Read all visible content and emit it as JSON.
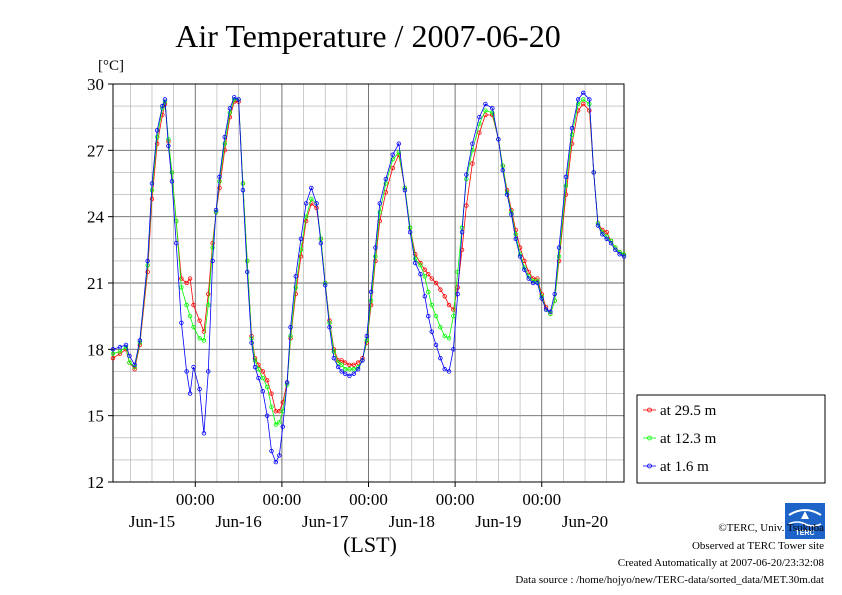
{
  "chart_data": {
    "type": "line",
    "title": "Air Temperature / 2007-06-20",
    "ylabel": "[°C]",
    "xlabel": "(LST)",
    "ylim": [
      12,
      30
    ],
    "yticks": [
      12,
      15,
      18,
      21,
      24,
      27,
      30
    ],
    "y_tick_labels": [
      "12",
      "15",
      "18",
      "21",
      "24",
      "27",
      "30"
    ],
    "xlim": [
      -0.95,
      4.95
    ],
    "xticks_days": [
      0,
      1,
      2,
      3,
      4
    ],
    "xtick_time_label": "00:00",
    "xtick_date_labels": [
      "Jun-15",
      "Jun-16",
      "Jun-17",
      "Jun-18",
      "Jun-19",
      "Jun-20"
    ],
    "xtick_date_positions": [
      -0.5,
      0.5,
      1.5,
      2.5,
      3.5,
      4.5
    ],
    "grid": true,
    "legend_position": "right",
    "series": [
      {
        "name": "at 29.5 m",
        "color": "#ff0000",
        "x": [
          -0.95,
          -0.87,
          -0.8,
          -0.76,
          -0.7,
          -0.64,
          -0.55,
          -0.5,
          -0.44,
          -0.38,
          -0.35,
          -0.31,
          -0.27,
          -0.22,
          -0.16,
          -0.1,
          -0.06,
          -0.02,
          0.05,
          0.1,
          0.15,
          0.2,
          0.24,
          0.28,
          0.34,
          0.4,
          0.45,
          0.5,
          0.55,
          0.6,
          0.65,
          0.69,
          0.73,
          0.78,
          0.83,
          0.88,
          0.93,
          0.97,
          1.01,
          1.06,
          1.1,
          1.16,
          1.22,
          1.28,
          1.34,
          1.4,
          1.45,
          1.5,
          1.55,
          1.6,
          1.65,
          1.69,
          1.73,
          1.78,
          1.83,
          1.88,
          1.93,
          1.98,
          2.03,
          2.08,
          2.13,
          2.2,
          2.28,
          2.35,
          2.42,
          2.48,
          2.54,
          2.6,
          2.65,
          2.69,
          2.73,
          2.78,
          2.83,
          2.88,
          2.93,
          2.98,
          3.03,
          3.08,
          3.13,
          3.2,
          3.28,
          3.35,
          3.43,
          3.5,
          3.55,
          3.6,
          3.65,
          3.7,
          3.75,
          3.8,
          3.85,
          3.9,
          3.95,
          4.0,
          4.05,
          4.1,
          4.15,
          4.2,
          4.28,
          4.35,
          4.42,
          4.48,
          4.55,
          4.6,
          4.65,
          4.7,
          4.75,
          4.8,
          4.85,
          4.9,
          4.95
        ],
        "y": [
          17.6,
          17.8,
          18.0,
          17.4,
          17.1,
          18.2,
          21.5,
          24.8,
          27.3,
          28.6,
          29.1,
          27.4,
          26.0,
          23.8,
          21.2,
          21.0,
          21.2,
          20.0,
          19.3,
          18.8,
          20.5,
          22.8,
          24.2,
          25.3,
          27.0,
          28.5,
          29.2,
          29.2,
          25.5,
          22.0,
          18.6,
          17.6,
          17.3,
          17.0,
          16.6,
          16.0,
          15.2,
          15.2,
          15.6,
          16.5,
          18.5,
          20.5,
          22.2,
          23.8,
          24.6,
          24.4,
          23.0,
          21.0,
          19.3,
          18.0,
          17.5,
          17.5,
          17.4,
          17.3,
          17.3,
          17.4,
          17.6,
          18.3,
          20.0,
          22.0,
          23.8,
          25.1,
          26.2,
          26.8,
          25.3,
          23.5,
          22.3,
          21.9,
          21.6,
          21.4,
          21.2,
          21.0,
          20.7,
          20.4,
          20.0,
          19.8,
          20.8,
          22.5,
          24.5,
          26.4,
          27.8,
          28.6,
          28.6,
          27.5,
          26.3,
          25.2,
          24.3,
          23.4,
          22.6,
          22.0,
          21.5,
          21.2,
          21.2,
          20.5,
          19.9,
          19.6,
          20.2,
          22.0,
          25.0,
          27.3,
          28.8,
          29.1,
          28.8,
          26.0,
          23.7,
          23.4,
          23.3,
          22.9,
          22.6,
          22.4,
          22.3
        ],
        "marker": "circle"
      },
      {
        "name": "at 12.3 m",
        "color": "#00ff00",
        "x": [
          -0.95,
          -0.87,
          -0.8,
          -0.76,
          -0.7,
          -0.64,
          -0.55,
          -0.5,
          -0.44,
          -0.38,
          -0.35,
          -0.31,
          -0.27,
          -0.22,
          -0.16,
          -0.1,
          -0.06,
          -0.02,
          0.05,
          0.1,
          0.15,
          0.2,
          0.24,
          0.28,
          0.34,
          0.4,
          0.45,
          0.5,
          0.55,
          0.6,
          0.65,
          0.69,
          0.73,
          0.78,
          0.83,
          0.88,
          0.93,
          0.97,
          1.01,
          1.06,
          1.1,
          1.16,
          1.22,
          1.28,
          1.34,
          1.4,
          1.45,
          1.5,
          1.55,
          1.6,
          1.65,
          1.69,
          1.73,
          1.78,
          1.83,
          1.88,
          1.93,
          1.98,
          2.03,
          2.08,
          2.13,
          2.2,
          2.28,
          2.35,
          2.42,
          2.48,
          2.54,
          2.6,
          2.65,
          2.69,
          2.73,
          2.78,
          2.83,
          2.88,
          2.93,
          2.98,
          3.03,
          3.08,
          3.13,
          3.2,
          3.28,
          3.35,
          3.43,
          3.5,
          3.55,
          3.6,
          3.65,
          3.7,
          3.75,
          3.8,
          3.85,
          3.9,
          3.95,
          4.0,
          4.05,
          4.1,
          4.15,
          4.2,
          4.28,
          4.35,
          4.42,
          4.48,
          4.55,
          4.6,
          4.65,
          4.7,
          4.75,
          4.8,
          4.85,
          4.9,
          4.95
        ],
        "y": [
          17.8,
          17.9,
          18.1,
          17.4,
          17.2,
          18.3,
          21.8,
          25.2,
          27.6,
          28.9,
          29.2,
          27.5,
          26.0,
          23.8,
          20.8,
          20.0,
          19.5,
          19.0,
          18.5,
          18.4,
          20.0,
          22.6,
          24.2,
          25.6,
          27.3,
          28.7,
          29.3,
          29.3,
          25.5,
          22.0,
          18.5,
          17.5,
          17.1,
          16.7,
          16.3,
          15.4,
          14.6,
          14.7,
          15.2,
          16.4,
          18.6,
          20.8,
          22.5,
          24.0,
          24.8,
          24.6,
          23.0,
          21.0,
          19.2,
          17.9,
          17.4,
          17.3,
          17.1,
          17.1,
          17.1,
          17.2,
          17.5,
          18.4,
          20.2,
          22.2,
          24.2,
          25.5,
          26.6,
          26.9,
          25.3,
          23.5,
          22.1,
          21.8,
          21.3,
          20.6,
          20.0,
          19.5,
          19.0,
          18.6,
          18.5,
          19.5,
          21.5,
          23.5,
          25.7,
          27.0,
          28.2,
          28.8,
          28.7,
          27.5,
          26.3,
          25.1,
          24.2,
          23.2,
          22.3,
          21.7,
          21.3,
          21.1,
          21.1,
          20.4,
          19.8,
          19.6,
          20.2,
          22.2,
          25.4,
          27.7,
          29.1,
          29.3,
          29.1,
          26.0,
          23.7,
          23.3,
          23.1,
          22.9,
          22.6,
          22.4,
          22.3
        ],
        "marker": "circle"
      },
      {
        "name": "at 1.6 m",
        "color": "#0000ff",
        "x": [
          -0.95,
          -0.87,
          -0.8,
          -0.76,
          -0.7,
          -0.64,
          -0.55,
          -0.5,
          -0.44,
          -0.38,
          -0.35,
          -0.31,
          -0.27,
          -0.22,
          -0.16,
          -0.1,
          -0.06,
          -0.02,
          0.05,
          0.1,
          0.15,
          0.2,
          0.24,
          0.28,
          0.34,
          0.4,
          0.45,
          0.5,
          0.55,
          0.6,
          0.65,
          0.69,
          0.73,
          0.78,
          0.83,
          0.88,
          0.93,
          0.97,
          1.01,
          1.06,
          1.1,
          1.16,
          1.22,
          1.28,
          1.34,
          1.4,
          1.45,
          1.5,
          1.55,
          1.6,
          1.65,
          1.69,
          1.73,
          1.78,
          1.83,
          1.88,
          1.93,
          1.98,
          2.03,
          2.08,
          2.13,
          2.2,
          2.28,
          2.35,
          2.42,
          2.48,
          2.54,
          2.6,
          2.65,
          2.69,
          2.73,
          2.78,
          2.83,
          2.88,
          2.93,
          2.98,
          3.03,
          3.08,
          3.13,
          3.2,
          3.28,
          3.35,
          3.43,
          3.5,
          3.55,
          3.6,
          3.65,
          3.7,
          3.75,
          3.8,
          3.85,
          3.9,
          3.95,
          4.0,
          4.05,
          4.1,
          4.15,
          4.2,
          4.28,
          4.35,
          4.42,
          4.48,
          4.55,
          4.6,
          4.65,
          4.7,
          4.75,
          4.8,
          4.85,
          4.9,
          4.95
        ],
        "y": [
          18.0,
          18.1,
          18.2,
          17.7,
          17.3,
          18.4,
          22.0,
          25.5,
          27.9,
          29.0,
          29.3,
          27.2,
          25.6,
          22.8,
          19.2,
          17.0,
          16.0,
          17.2,
          16.2,
          14.2,
          17.0,
          22.0,
          24.3,
          25.8,
          27.6,
          28.9,
          29.4,
          29.3,
          25.2,
          21.5,
          18.3,
          17.2,
          16.7,
          16.1,
          15.0,
          13.4,
          12.9,
          13.2,
          14.5,
          16.5,
          19.0,
          21.3,
          23.0,
          24.6,
          25.3,
          24.6,
          22.8,
          20.9,
          19.0,
          17.6,
          17.2,
          17.0,
          16.9,
          16.8,
          16.9,
          17.1,
          17.5,
          18.6,
          20.6,
          22.6,
          24.6,
          25.7,
          26.8,
          27.3,
          25.2,
          23.3,
          21.9,
          21.4,
          20.4,
          19.5,
          18.8,
          18.2,
          17.6,
          17.1,
          17.0,
          18.0,
          20.5,
          23.3,
          25.9,
          27.3,
          28.5,
          29.1,
          28.9,
          27.5,
          26.1,
          25.0,
          24.1,
          23.0,
          22.2,
          21.6,
          21.2,
          21.0,
          21.0,
          20.3,
          19.8,
          19.7,
          20.5,
          22.6,
          25.8,
          28.0,
          29.3,
          29.6,
          29.3,
          26.0,
          23.6,
          23.2,
          23.0,
          22.8,
          22.5,
          22.3,
          22.2
        ],
        "marker": "circle"
      }
    ]
  },
  "footer": {
    "copyright": "©TERC, Univ. Tsukuba",
    "site": "Observed at TERC Tower site",
    "created": "Created Automatically at 2007-06-20/23:32:08",
    "source": "Data source : /home/hojyo/new/TERC-data/sorted_data/MET.30m.dat"
  },
  "logo": {
    "text": "TERC",
    "color": "#1e64c8"
  }
}
